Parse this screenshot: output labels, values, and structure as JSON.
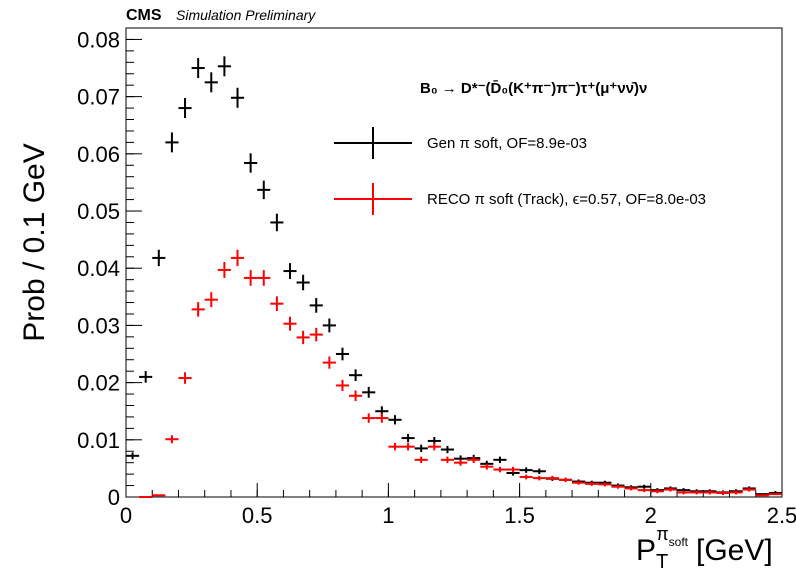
{
  "header": {
    "experiment": "CMS",
    "status": "Simulation Preliminary"
  },
  "chart_data": {
    "type": "scatter",
    "process_label": "B₀ → D*⁻(D̄₀(K⁺π⁻)π⁻)τ⁺(μ⁺νν̄)ν",
    "xlabel": "P_T^{π_soft} [GeV]",
    "ylabel": "Prob / 0.1 GeV",
    "xlim": [
      0,
      2.5
    ],
    "ylim": [
      0,
      0.082
    ],
    "x_ticks": [
      "0",
      "0.5",
      "1",
      "1.5",
      "2",
      "2.5"
    ],
    "y_ticks": [
      "0",
      "0.01",
      "0.02",
      "0.03",
      "0.04",
      "0.05",
      "0.06",
      "0.07",
      "0.08"
    ],
    "bin_width": 0.05,
    "legend_position": "top-right",
    "series": [
      {
        "name": "Gen π soft, OF=8.9e-03",
        "color": "#000000",
        "x": [
          0.025,
          0.075,
          0.125,
          0.175,
          0.225,
          0.275,
          0.325,
          0.375,
          0.425,
          0.475,
          0.525,
          0.575,
          0.625,
          0.675,
          0.725,
          0.775,
          0.825,
          0.875,
          0.925,
          0.975,
          1.025,
          1.075,
          1.125,
          1.175,
          1.225,
          1.275,
          1.325,
          1.375,
          1.425,
          1.475,
          1.525,
          1.575,
          1.625,
          1.675,
          1.725,
          1.775,
          1.825,
          1.875,
          1.925,
          1.975,
          2.025,
          2.075,
          2.125,
          2.175,
          2.225,
          2.275,
          2.325,
          2.375,
          2.425,
          2.475
        ],
        "y": [
          0.0072,
          0.021,
          0.0418,
          0.062,
          0.068,
          0.075,
          0.0725,
          0.0753,
          0.0698,
          0.0584,
          0.0537,
          0.048,
          0.0395,
          0.0375,
          0.0335,
          0.03,
          0.025,
          0.0213,
          0.0183,
          0.015,
          0.0135,
          0.0103,
          0.0085,
          0.0098,
          0.0083,
          0.0067,
          0.0068,
          0.0058,
          0.0065,
          0.0042,
          0.0047,
          0.0045,
          0.0032,
          0.003,
          0.0027,
          0.0025,
          0.0025,
          0.002,
          0.0017,
          0.0018,
          0.0012,
          0.0015,
          0.0012,
          0.001,
          0.001,
          0.0008,
          0.001,
          0.0015,
          0.0005,
          0.0007
        ]
      },
      {
        "name": "RECO π soft (Track),  ϵ=0.57, OF=8.0e-03",
        "color": "#ff0000",
        "x": [
          0.075,
          0.125,
          0.175,
          0.225,
          0.275,
          0.325,
          0.375,
          0.425,
          0.475,
          0.525,
          0.575,
          0.625,
          0.675,
          0.725,
          0.775,
          0.825,
          0.875,
          0.925,
          0.975,
          1.025,
          1.075,
          1.125,
          1.175,
          1.225,
          1.275,
          1.325,
          1.375,
          1.425,
          1.475,
          1.525,
          1.575,
          1.625,
          1.675,
          1.725,
          1.775,
          1.825,
          1.875,
          1.925,
          1.975,
          2.025,
          2.075,
          2.125,
          2.175,
          2.225,
          2.275,
          2.325,
          2.375,
          2.425,
          2.475
        ],
        "y": [
          0.0,
          0.0003,
          0.0101,
          0.0208,
          0.0328,
          0.0345,
          0.0397,
          0.0418,
          0.0383,
          0.0383,
          0.0338,
          0.0303,
          0.0279,
          0.0284,
          0.0235,
          0.0195,
          0.0177,
          0.0138,
          0.0138,
          0.0088,
          0.0088,
          0.0065,
          0.0088,
          0.0065,
          0.006,
          0.0065,
          0.0053,
          0.0048,
          0.0048,
          0.0035,
          0.0033,
          0.0033,
          0.003,
          0.0025,
          0.0023,
          0.0022,
          0.0018,
          0.0015,
          0.0012,
          0.001,
          0.0013,
          0.0008,
          0.0008,
          0.0008,
          0.0007,
          0.0008,
          0.0013,
          0.0003,
          0.0005
        ]
      }
    ]
  }
}
